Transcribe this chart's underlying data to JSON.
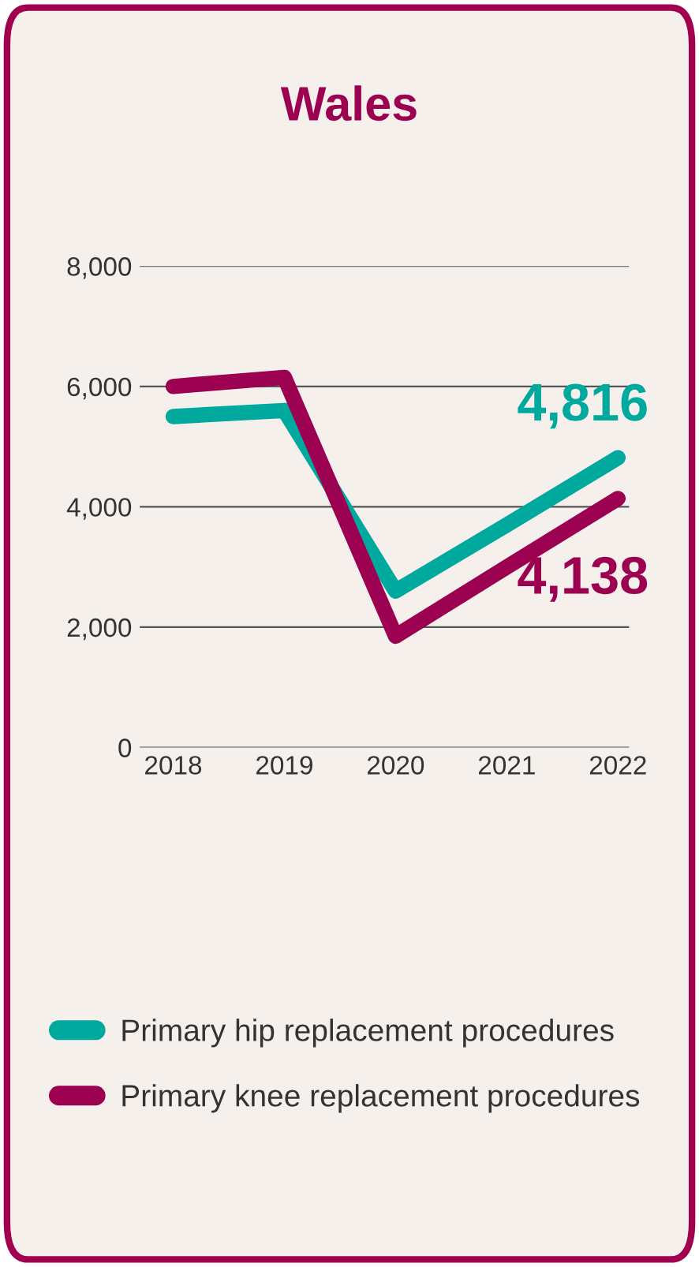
{
  "chart_data": {
    "type": "line",
    "title": "Wales",
    "categories": [
      "2018",
      "2019",
      "2020",
      "2021",
      "2022"
    ],
    "series": [
      {
        "name": "Primary hip replacement procedures",
        "color": "#00a99d",
        "values": [
          5500,
          5600,
          2600,
          3700,
          4816
        ],
        "value_labels": [
          null,
          null,
          null,
          null,
          "4,816"
        ]
      },
      {
        "name": "Primary knee replacement procedures",
        "color": "#9c0051",
        "values": [
          6000,
          6150,
          1850,
          3000,
          4138
        ],
        "value_labels": [
          null,
          null,
          null,
          null,
          "4,138"
        ]
      }
    ],
    "ylim": [
      0,
      8000
    ],
    "yticks": [
      0,
      {
        "value": 2000,
        "label": "2,000"
      },
      {
        "value": 4000,
        "label": "4,000"
      },
      {
        "value": 6000,
        "label": "6,000"
      },
      {
        "value": 8000,
        "label": "8,000"
      }
    ],
    "grid": "y",
    "legend": "bottom",
    "marker": "none",
    "line_style": "solid"
  }
}
